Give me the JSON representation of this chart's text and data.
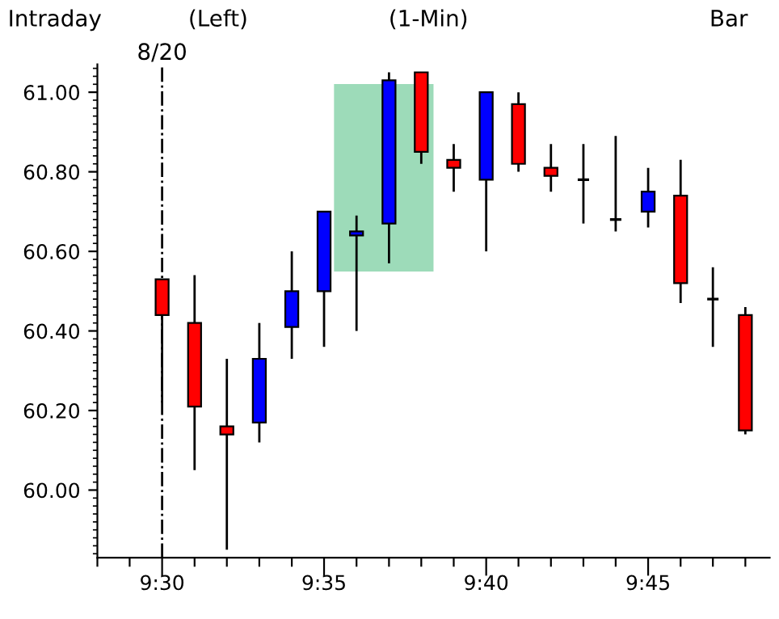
{
  "chart_data": {
    "type": "candlestick",
    "annotations": [
      "Intraday",
      "(Left)",
      "(1-Min)",
      "Bar",
      "8/20"
    ],
    "x": [
      9.5,
      9.5167,
      9.5333,
      9.55,
      9.5667,
      9.5833,
      9.6,
      9.6167,
      9.6333,
      9.65,
      9.6667,
      9.6833,
      9.7,
      9.7167,
      9.7333,
      9.75,
      9.7667,
      9.7833,
      9.8
    ],
    "ohlc": [
      [
        60.53,
        60.53,
        60.22,
        60.44
      ],
      [
        60.42,
        60.54,
        60.05,
        60.21
      ],
      [
        60.16,
        60.33,
        59.85,
        60.14
      ],
      [
        60.17,
        60.42,
        60.12,
        60.33
      ],
      [
        60.41,
        60.6,
        60.33,
        60.5
      ],
      [
        60.5,
        60.7,
        60.36,
        60.7
      ],
      [
        60.64,
        60.69,
        60.4,
        60.65
      ],
      [
        60.67,
        61.05,
        60.57,
        61.03
      ],
      [
        61.05,
        61.05,
        60.82,
        60.85
      ],
      [
        60.83,
        60.87,
        60.75,
        60.81
      ],
      [
        60.78,
        61.0,
        60.6,
        61.0
      ],
      [
        60.97,
        61.0,
        60.8,
        60.82
      ],
      [
        60.81,
        60.87,
        60.75,
        60.79
      ],
      [
        60.78,
        60.87,
        60.67,
        60.78
      ],
      [
        60.68,
        60.89,
        60.65,
        60.68
      ],
      [
        60.7,
        60.81,
        60.66,
        60.75
      ],
      [
        60.74,
        60.83,
        60.47,
        60.52
      ],
      [
        60.48,
        60.56,
        60.36,
        60.48
      ],
      [
        60.44,
        60.46,
        60.14,
        60.15
      ]
    ],
    "colors": [
      "#ff0000",
      "#ff0000",
      "#ff0000",
      "#0000ff",
      "#0000ff",
      "#0000ff",
      "#0000ff",
      "#0000ff",
      "#ff0000",
      "#ff0000",
      "#0000ff",
      "#ff0000",
      "#ff0000",
      "#000000",
      "#000000",
      "#0000ff",
      "#ff0000",
      "#000000",
      "#ff0000"
    ],
    "xlim": [
      9.4667,
      9.8125
    ],
    "xticks": [
      {
        "value": 9.4667,
        "label": null
      },
      {
        "value": 9.4833,
        "label": null
      },
      {
        "value": 9.5,
        "label": "9:30"
      },
      {
        "value": 9.5167,
        "label": null
      },
      {
        "value": 9.5333,
        "label": null
      },
      {
        "value": 9.55,
        "label": null
      },
      {
        "value": 9.5667,
        "label": null
      },
      {
        "value": 9.5833,
        "label": "9:35"
      },
      {
        "value": 9.6,
        "label": null
      },
      {
        "value": 9.6167,
        "label": null
      },
      {
        "value": 9.6333,
        "label": null
      },
      {
        "value": 9.65,
        "label": null
      },
      {
        "value": 9.6667,
        "label": "9:40"
      },
      {
        "value": 9.6833,
        "label": null
      },
      {
        "value": 9.7,
        "label": null
      },
      {
        "value": 9.7167,
        "label": null
      },
      {
        "value": 9.7333,
        "label": null
      },
      {
        "value": 9.75,
        "label": "9:45"
      },
      {
        "value": 9.7667,
        "label": null
      },
      {
        "value": 9.7833,
        "label": null
      },
      {
        "value": 9.8,
        "label": null
      }
    ],
    "ylim": [
      59.83,
      61.07
    ],
    "yticks": [
      {
        "value": 60,
        "label": "60.00"
      },
      {
        "value": 60.2,
        "label": "60.20"
      },
      {
        "value": 60.4,
        "label": "60.40"
      },
      {
        "value": 60.6,
        "label": "60.60"
      },
      {
        "value": 60.8,
        "label": "60.80"
      },
      {
        "value": 61,
        "label": "61.00"
      }
    ],
    "ref_lines": [
      {
        "axis": "x",
        "value": 9.5,
        "color": "#000000",
        "line_style": "dashdot"
      }
    ],
    "grid": false,
    "legend": false
  }
}
